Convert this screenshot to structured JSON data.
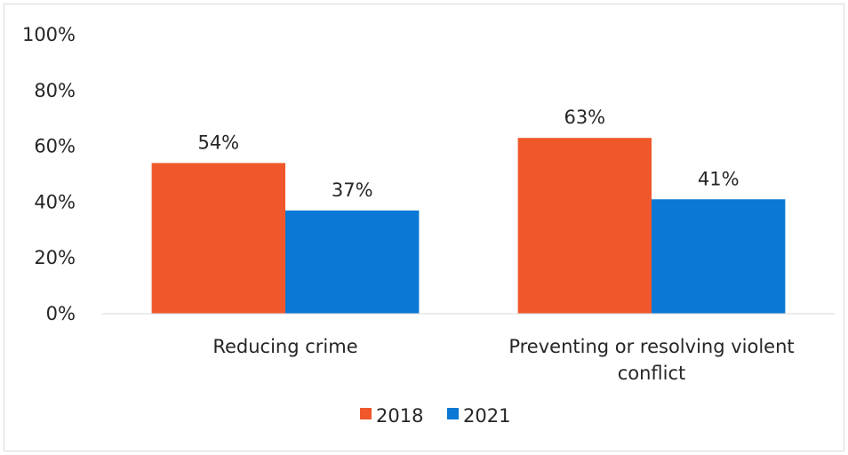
{
  "chart_data": {
    "type": "bar",
    "title": "",
    "xlabel": "",
    "ylabel": "",
    "ylim": [
      0,
      100
    ],
    "yticks": [
      0,
      20,
      40,
      60,
      80,
      100
    ],
    "ytick_labels": [
      "0%",
      "20%",
      "40%",
      "60%",
      "80%",
      "100%"
    ],
    "categories": [
      [
        "Reducing crime"
      ],
      [
        "Preventing or resolving violent",
        "conflict"
      ]
    ],
    "series": [
      {
        "name": "2018",
        "color": "#F0582B",
        "values": [
          54,
          63
        ],
        "labels": [
          "54%",
          "63%"
        ]
      },
      {
        "name": "2021",
        "color": "#0A78D4",
        "values": [
          37,
          41
        ],
        "labels": [
          "37%",
          "41%"
        ]
      }
    ],
    "legend": {
      "position": "bottom"
    },
    "grid": false
  }
}
